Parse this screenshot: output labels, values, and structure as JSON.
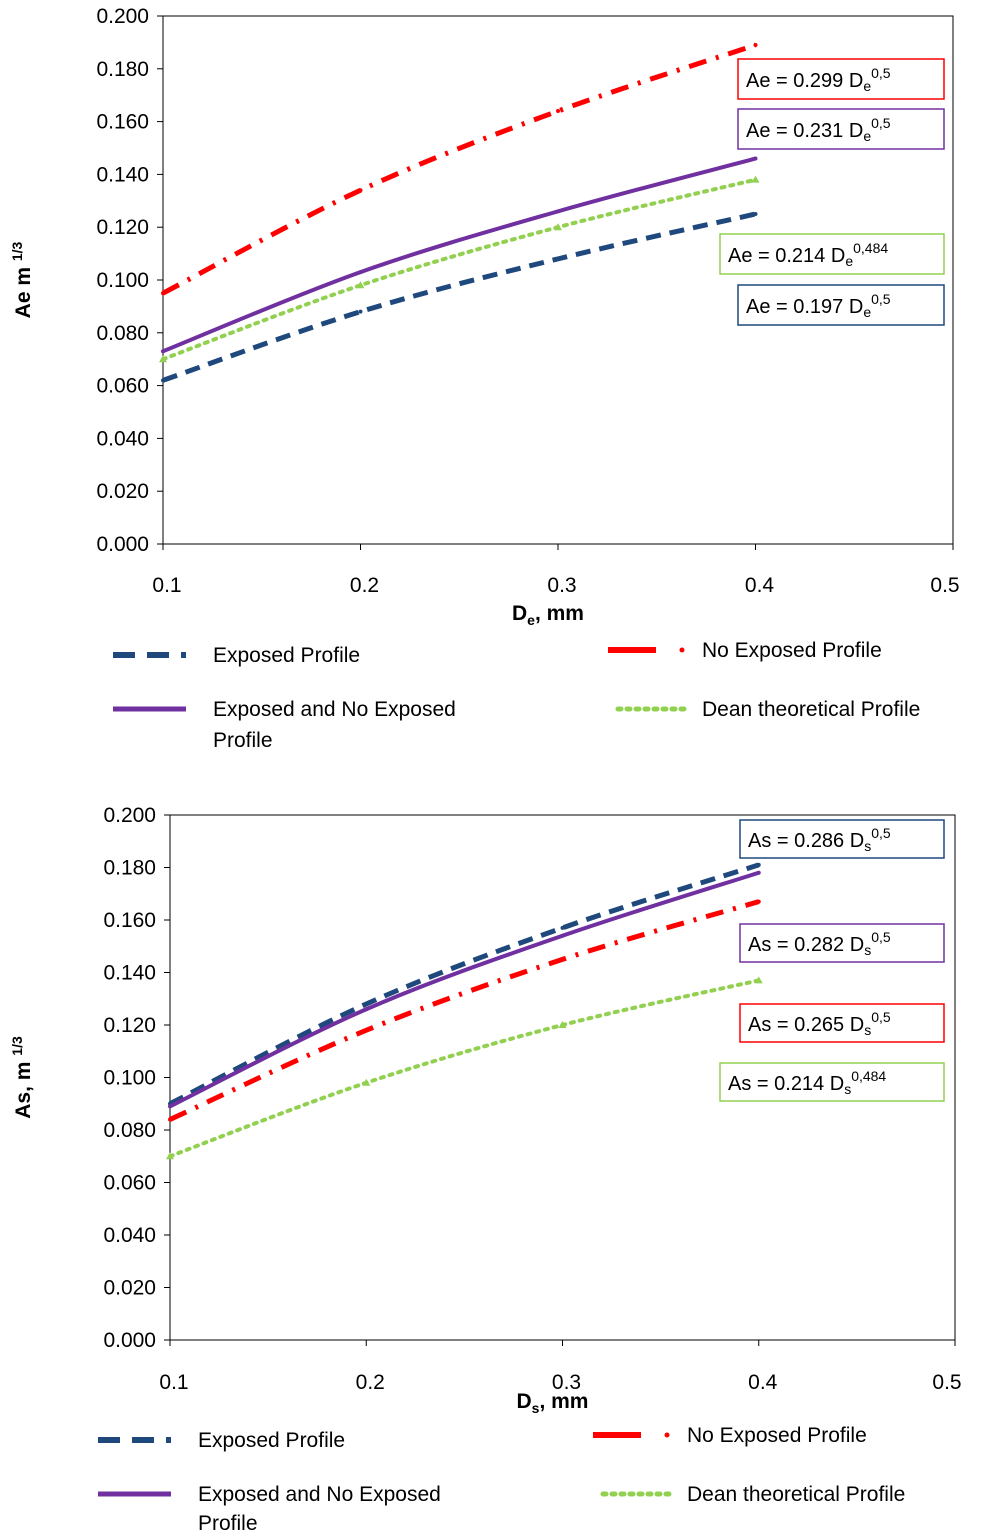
{
  "colors": {
    "exposed": "#1f497d",
    "no_exposed": "#ff0000",
    "combined": "#7030a0",
    "dean": "#92d050"
  },
  "chart_data": [
    {
      "type": "line",
      "xlabel": "D",
      "xlabel_sub": "e",
      "xlabel_suffix": ", mm",
      "ylabel": "Ae m",
      "ylabel_sup": "1/3",
      "xlim": [
        0.1,
        0.5
      ],
      "ylim": [
        0.0,
        0.2
      ],
      "x_ticks": [
        "0.1",
        "0.2",
        "0.3",
        "0.4",
        "0.5"
      ],
      "y_ticks": [
        "0.000",
        "0.020",
        "0.040",
        "0.060",
        "0.080",
        "0.100",
        "0.120",
        "0.140",
        "0.160",
        "0.180",
        "0.200"
      ],
      "x": [
        0.1,
        0.2,
        0.3,
        0.4
      ],
      "series": [
        {
          "name": "Exposed Profile",
          "style": "dash",
          "color_key": "exposed",
          "values": [
            0.062,
            0.088,
            0.108,
            0.125
          ]
        },
        {
          "name": "No Exposed Profile",
          "style": "dashdot",
          "color_key": "no_exposed",
          "values": [
            0.095,
            0.134,
            0.164,
            0.189
          ]
        },
        {
          "name": "Exposed and No Exposed Profile",
          "style": "solid",
          "color_key": "combined",
          "values": [
            0.073,
            0.103,
            0.126,
            0.146
          ]
        },
        {
          "name": "Dean theoretical Profile",
          "style": "dot",
          "color_key": "dean",
          "values": [
            0.07,
            0.098,
            0.12,
            0.138
          ]
        }
      ],
      "legend_labels": [
        "Exposed Profile",
        "No Exposed Profile",
        "Exposed and No Exposed Profile",
        "Dean theoretical Profile"
      ],
      "annotations": [
        {
          "lead": "Ae = 0.299 D",
          "sub": "e",
          "sup": "0,5",
          "color_key": "no_exposed"
        },
        {
          "lead": "Ae = 0.231 D",
          "sub": "e",
          "sup": "0,5",
          "color_key": "combined"
        },
        {
          "lead": "Ae = 0.214 D",
          "sub": "e",
          "sup": "0,484",
          "color_key": "dean"
        },
        {
          "lead": "Ae = 0.197 D",
          "sub": "e",
          "sup": "0,5",
          "color_key": "exposed"
        }
      ]
    },
    {
      "type": "line",
      "xlabel": "D",
      "xlabel_sub": "s",
      "xlabel_suffix": ", mm",
      "ylabel": "As, m",
      "ylabel_sup": "1/3",
      "xlim": [
        0.1,
        0.5
      ],
      "ylim": [
        0.0,
        0.2
      ],
      "x_ticks": [
        "0.1",
        "0.2",
        "0.3",
        "0.4",
        "0.5"
      ],
      "y_ticks": [
        "0.000",
        "0.020",
        "0.040",
        "0.060",
        "0.080",
        "0.100",
        "0.120",
        "0.140",
        "0.160",
        "0.180",
        "0.200"
      ],
      "x": [
        0.1,
        0.2,
        0.3,
        0.4
      ],
      "series": [
        {
          "name": "Exposed Profile",
          "style": "dash",
          "color_key": "exposed",
          "values": [
            0.09,
            0.128,
            0.157,
            0.181
          ]
        },
        {
          "name": "No Exposed Profile",
          "style": "dashdot",
          "color_key": "no_exposed",
          "values": [
            0.084,
            0.118,
            0.145,
            0.167
          ]
        },
        {
          "name": "Exposed and No Exposed Profile",
          "style": "solid",
          "color_key": "combined",
          "values": [
            0.089,
            0.126,
            0.154,
            0.178
          ]
        },
        {
          "name": "Dean theoretical Profile",
          "style": "dot",
          "color_key": "dean",
          "values": [
            0.07,
            0.098,
            0.12,
            0.137
          ]
        }
      ],
      "legend_labels": [
        "Exposed Profile",
        "No Exposed Profile",
        "Exposed and No Exposed Profile",
        "Dean theoretical Profile"
      ],
      "annotations": [
        {
          "lead": "As = 0.286 D",
          "sub": "s",
          "sup": "0,5",
          "color_key": "exposed"
        },
        {
          "lead": "As = 0.282 D",
          "sub": "s",
          "sup": "0,5",
          "color_key": "combined"
        },
        {
          "lead": "As = 0.265 D",
          "sub": "s",
          "sup": "0,5",
          "color_key": "no_exposed"
        },
        {
          "lead": "As = 0.214 D",
          "sub": "s",
          "sup": "0,484",
          "color_key": "dean"
        }
      ]
    }
  ]
}
